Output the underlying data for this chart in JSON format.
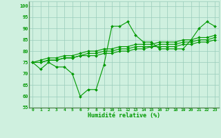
{
  "xlabel": "Humidité relative (%)",
  "background_color": "#cff0df",
  "grid_color": "#99ccbb",
  "line_color": "#009900",
  "xlim": [
    -0.5,
    23.5
  ],
  "ylim": [
    55,
    102
  ],
  "yticks": [
    55,
    60,
    65,
    70,
    75,
    80,
    85,
    90,
    95,
    100
  ],
  "xticks": [
    0,
    1,
    2,
    3,
    4,
    5,
    6,
    7,
    8,
    9,
    10,
    11,
    12,
    13,
    14,
    15,
    16,
    17,
    18,
    19,
    20,
    21,
    22,
    23
  ],
  "series": [
    [
      75,
      72,
      75,
      73,
      73,
      70,
      60,
      63,
      63,
      74,
      91,
      91,
      93,
      87,
      84,
      84,
      81,
      81,
      81,
      81,
      85,
      90,
      93,
      91
    ],
    [
      75,
      75,
      76,
      76,
      77,
      77,
      78,
      78,
      78,
      79,
      79,
      80,
      80,
      81,
      81,
      82,
      82,
      82,
      82,
      83,
      83,
      84,
      84,
      85
    ],
    [
      75,
      75,
      76,
      76,
      77,
      77,
      78,
      79,
      79,
      80,
      80,
      81,
      81,
      82,
      82,
      82,
      83,
      83,
      83,
      84,
      84,
      85,
      85,
      86
    ],
    [
      75,
      76,
      77,
      77,
      78,
      78,
      79,
      80,
      80,
      81,
      81,
      82,
      82,
      83,
      83,
      83,
      84,
      84,
      84,
      85,
      85,
      86,
      86,
      87
    ]
  ]
}
